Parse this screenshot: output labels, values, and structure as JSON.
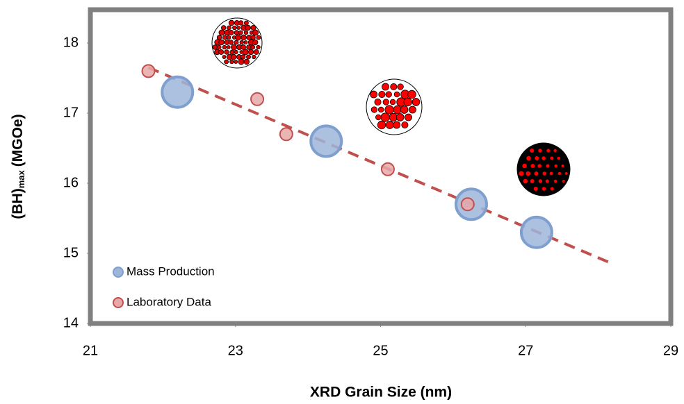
{
  "chart_data": {
    "type": "scatter",
    "x_label": "XRD Grain Size (nm)",
    "y_label": {
      "main": "(BH)",
      "subscript": "max",
      "unit": "(MGOe)"
    },
    "xlim": [
      21,
      29
    ],
    "xticks": [
      21,
      23,
      25,
      27,
      29
    ],
    "ylim": [
      14,
      18.5
    ],
    "yticks": [
      14,
      15,
      16,
      17,
      18
    ],
    "legend": "lower left",
    "series": [
      {
        "name": "Mass Production",
        "color": "#9db6da",
        "edge": "#7f9fcf",
        "size": 22,
        "x": [
          22.2,
          24.25,
          26.25,
          27.15
        ],
        "values": [
          17.3,
          16.6,
          15.7,
          15.3
        ]
      },
      {
        "name": "Laboratory Data",
        "color": "#e8a8a8",
        "edge": "#c0504d",
        "size": 9,
        "x": [
          21.8,
          23.3,
          23.7,
          25.1,
          26.2
        ],
        "values": [
          17.6,
          17.2,
          16.7,
          16.2,
          15.7
        ]
      }
    ],
    "trendline": {
      "color": "#c0504d",
      "x": [
        21.8,
        28.2
      ],
      "values": [
        17.65,
        14.85
      ]
    }
  }
}
